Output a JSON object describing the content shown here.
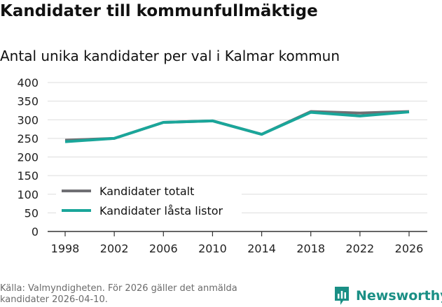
{
  "header": {
    "title": "Kandidater till kommunfullmäktige",
    "subtitle": "Antal unika kandidater per val i Kalmar kommun"
  },
  "footer": {
    "source_line1": "Källa: Valmyndigheten. För 2026 gäller det anmälda",
    "source_line2": "kandidater 2026-04-10.",
    "brand": "Newsworthy",
    "brand_icon": "newsworthy-logo-icon"
  },
  "colors": {
    "series1": "#6f6f73",
    "series2": "#1aa69a",
    "grid": "#dddddd",
    "axis": "#333333",
    "brand": "#1a8f85"
  },
  "chart_data": {
    "type": "line",
    "title": "Kandidater till kommunfullmäktige",
    "subtitle": "Antal unika kandidater per val i Kalmar kommun",
    "categories": [
      "1998",
      "2002",
      "2006",
      "2010",
      "2014",
      "2018",
      "2022",
      "2026"
    ],
    "ylim": [
      0,
      400
    ],
    "yticks": [
      0,
      50,
      100,
      150,
      200,
      250,
      300,
      350,
      400
    ],
    "grid": true,
    "legend_position": "bottom-left",
    "series": [
      {
        "name": "Kandidater totalt",
        "values": [
          245,
          250,
          293,
          297,
          261,
          322,
          318,
          322
        ]
      },
      {
        "name": "Kandidater låsta listor",
        "values": [
          241,
          250,
          293,
          297,
          261,
          320,
          310,
          321
        ]
      }
    ]
  }
}
